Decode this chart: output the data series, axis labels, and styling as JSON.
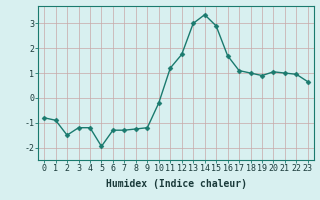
{
  "xlabel": "Humidex (Indice chaleur)",
  "x": [
    0,
    1,
    2,
    3,
    4,
    5,
    6,
    7,
    8,
    9,
    10,
    11,
    12,
    13,
    14,
    15,
    16,
    17,
    18,
    19,
    20,
    21,
    22,
    23
  ],
  "y": [
    -0.8,
    -0.9,
    -1.5,
    -1.2,
    -1.2,
    -1.95,
    -1.3,
    -1.3,
    -1.25,
    -1.2,
    -0.2,
    1.2,
    1.75,
    3.0,
    3.35,
    2.9,
    1.7,
    1.1,
    1.0,
    0.9,
    1.05,
    1.0,
    0.95,
    0.65
  ],
  "line_color": "#1a7a6e",
  "marker": "D",
  "marker_size": 2.5,
  "bg_color": "#d8f0f0",
  "grid_color": "#c8a8a8",
  "ylim": [
    -2.5,
    3.7
  ],
  "yticks": [
    -2,
    -1,
    0,
    1,
    2,
    3
  ],
  "xlim": [
    -0.5,
    23.5
  ],
  "xticks": [
    0,
    1,
    2,
    3,
    4,
    5,
    6,
    7,
    8,
    9,
    10,
    11,
    12,
    13,
    14,
    15,
    16,
    17,
    18,
    19,
    20,
    21,
    22,
    23
  ],
  "tick_fontsize": 6,
  "xlabel_fontsize": 7,
  "line_width": 1.0,
  "spine_color": "#1a7a6e",
  "tick_color": "#1a3a3a",
  "label_color": "#1a3a3a"
}
